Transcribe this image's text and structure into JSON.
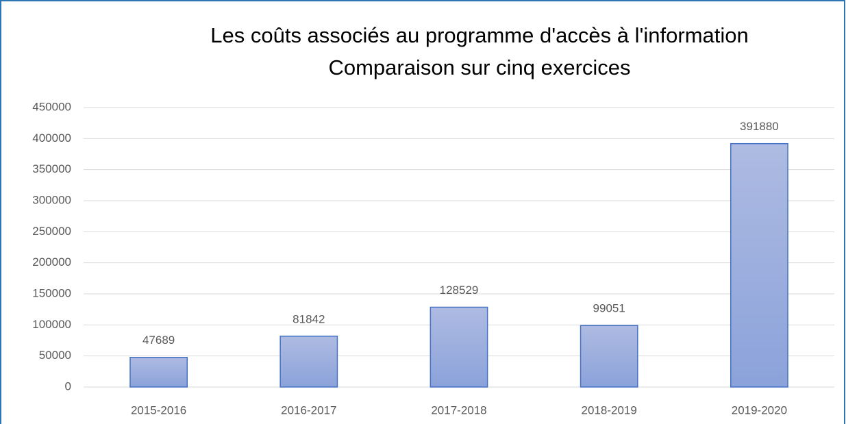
{
  "chart_data": {
    "type": "bar",
    "title": "Les coûts associés au programme d'accès à l'information",
    "subtitle": "Comparaison sur cinq exercices",
    "categories": [
      "2015-2016",
      "2016-2017",
      "2017-2018",
      "2018-2019",
      "2019-2020"
    ],
    "values": [
      47689,
      81842,
      128529,
      99051,
      391880
    ],
    "color": "#4472c4",
    "ylim": [
      0,
      450000
    ],
    "yticks": [
      0,
      50000,
      100000,
      150000,
      200000,
      250000,
      300000,
      350000,
      400000,
      450000
    ],
    "grid": true
  }
}
